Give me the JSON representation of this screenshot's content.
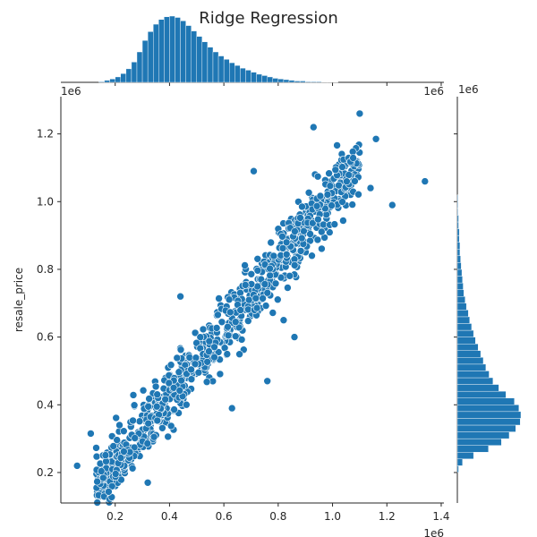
{
  "chart_data": {
    "type": "scatter",
    "title": "Ridge Regression",
    "xlabel": "",
    "ylabel": "resale_price",
    "x_offset_label": "1e6",
    "y_offset_label": "1e6",
    "marginal_x_offset_label": "1e6",
    "marginal_y_offset_label": "1e6",
    "xlim": [
      0.0,
      1.41
    ],
    "ylim": [
      0.11,
      1.31
    ],
    "x_ticks": [
      0.2,
      0.4,
      0.6,
      0.8,
      1.0,
      1.2,
      1.4
    ],
    "x_tick_labels": [
      "0.2",
      "0.4",
      "0.6",
      "0.8",
      "1.0",
      "1.2",
      "1.4"
    ],
    "y_ticks": [
      0.2,
      0.4,
      0.6,
      0.8,
      1.0,
      1.2
    ],
    "y_tick_labels": [
      "0.2",
      "0.4",
      "0.6",
      "0.8",
      "1.0",
      "1.2"
    ],
    "marker_color": "#1f77b4",
    "marker_edge_color": "#ffffff",
    "grid": false,
    "legend": "none",
    "marginal_x_histogram": {
      "bins": [
        0.14,
        0.16,
        0.18,
        0.2,
        0.22,
        0.24,
        0.26,
        0.28,
        0.3,
        0.32,
        0.34,
        0.36,
        0.38,
        0.4,
        0.42,
        0.44,
        0.46,
        0.48,
        0.5,
        0.52,
        0.54,
        0.56,
        0.58,
        0.6,
        0.62,
        0.64,
        0.66,
        0.68,
        0.7,
        0.72,
        0.74,
        0.76,
        0.78,
        0.8,
        0.82,
        0.84,
        0.86,
        0.88,
        0.9,
        0.92,
        0.94,
        0.96,
        0.98,
        1.0
      ],
      "counts": [
        1,
        3,
        5,
        8,
        13,
        20,
        30,
        45,
        62,
        75,
        86,
        93,
        97,
        98,
        96,
        91,
        84,
        76,
        68,
        60,
        52,
        45,
        39,
        34,
        29,
        25,
        21,
        18,
        15,
        12,
        10,
        8,
        6,
        5,
        4,
        3,
        2,
        2,
        1,
        1,
        1,
        0.5,
        0.5,
        0.3
      ]
    },
    "marginal_y_histogram": {
      "bins": [
        0.2,
        0.22,
        0.24,
        0.26,
        0.28,
        0.3,
        0.32,
        0.34,
        0.36,
        0.38,
        0.4,
        0.42,
        0.44,
        0.46,
        0.48,
        0.5,
        0.52,
        0.54,
        0.56,
        0.58,
        0.6,
        0.62,
        0.64,
        0.66,
        0.68,
        0.7,
        0.72,
        0.74,
        0.76,
        0.78,
        0.8,
        0.82,
        0.84,
        0.86,
        0.88,
        0.9,
        0.92,
        0.94,
        0.96,
        0.98,
        1.0
      ],
      "counts": [
        2,
        8,
        25,
        48,
        68,
        80,
        90,
        97,
        98,
        95,
        88,
        75,
        64,
        55,
        49,
        44,
        40,
        36,
        32,
        28,
        25,
        22,
        19,
        17,
        14,
        12,
        10,
        9,
        8,
        7,
        6,
        5,
        4,
        4,
        3,
        3,
        2,
        2,
        1,
        1,
        1
      ]
    }
  }
}
